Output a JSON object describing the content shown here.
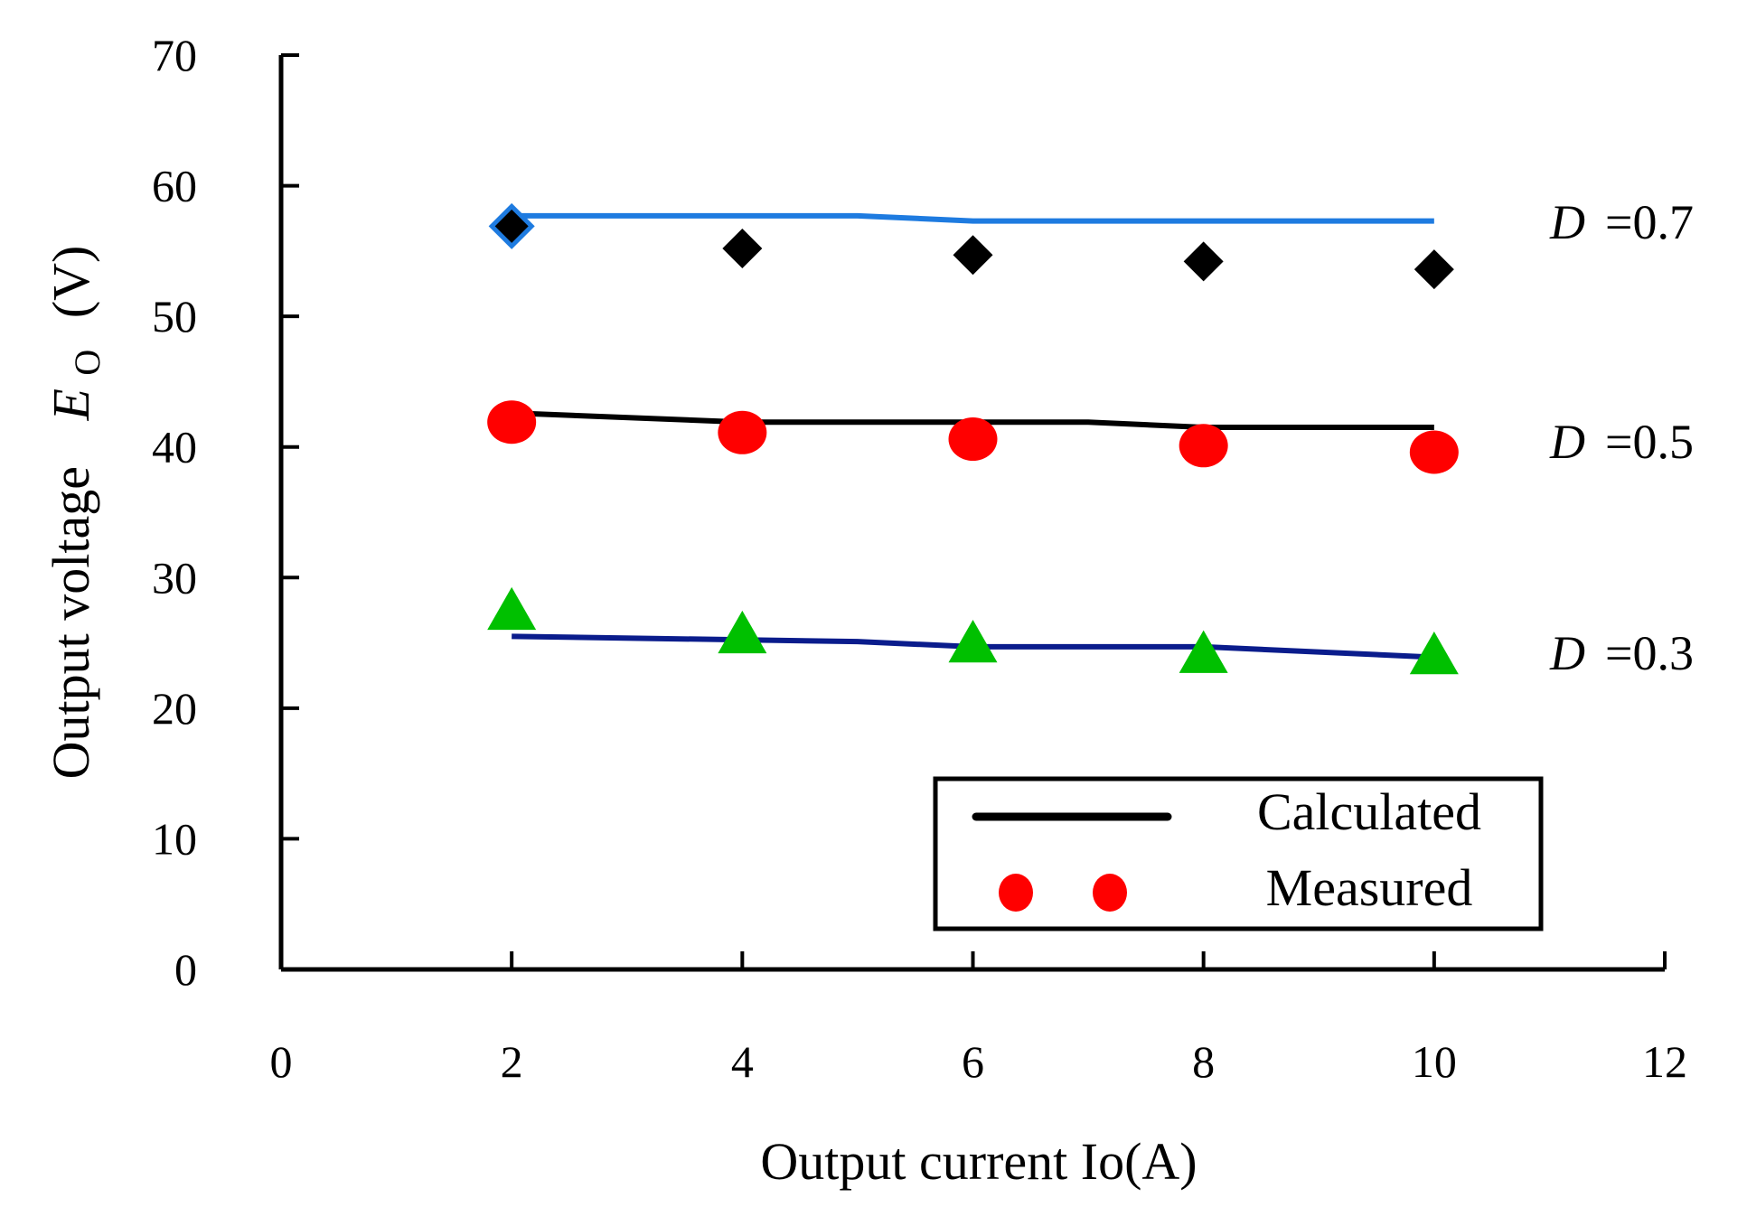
{
  "chart_data": {
    "type": "line",
    "xlabel": "Output current  Io(A)",
    "ylabel_prefix": "Output voltage",
    "ylabel_symbol": "E",
    "ylabel_subscript": "O",
    "ylabel_unit": "(V)",
    "xlim": [
      0,
      12
    ],
    "ylim": [
      0,
      70
    ],
    "x_ticks": [
      "0",
      "2",
      "4",
      "6",
      "8",
      "10",
      "12"
    ],
    "y_ticks": [
      "0",
      "10",
      "20",
      "30",
      "40",
      "50",
      "60",
      "70"
    ],
    "x": [
      2,
      4,
      6,
      8,
      10
    ],
    "series": [
      {
        "name": "D =0.7",
        "label_symbol": "D",
        "label_value": "=0.7",
        "calculated_x": [
          2,
          5,
          6,
          10
        ],
        "calculated": [
          57.7,
          57.7,
          57.3,
          57.3
        ],
        "measured": [
          56.9,
          55.2,
          54.7,
          54.2,
          53.6
        ],
        "marker": "diamond",
        "line_color": "#1e7be0",
        "marker_color": "#000000"
      },
      {
        "name": "D =0.5",
        "label_symbol": "D",
        "label_value": "=0.5",
        "calculated_x": [
          2,
          4,
          7,
          8,
          10
        ],
        "calculated": [
          42.6,
          41.9,
          41.9,
          41.5,
          41.5
        ],
        "measured": [
          41.9,
          41.1,
          40.6,
          40.1,
          39.6
        ],
        "marker": "circle",
        "line_color": "#000000",
        "marker_color": "#ff0000"
      },
      {
        "name": "D =0.3",
        "label_symbol": "D",
        "label_value": "=0.3",
        "calculated_x": [
          2,
          5,
          6,
          8,
          10
        ],
        "calculated": [
          25.5,
          25.1,
          24.7,
          24.7,
          23.9
        ],
        "measured": [
          27.4,
          25.6,
          24.9,
          24.1,
          24.0
        ],
        "marker": "triangle",
        "line_color": "#0a1c8c",
        "marker_color": "#00c000"
      }
    ],
    "legend": {
      "position": "bottom-right",
      "entries": [
        {
          "label": "Calculated",
          "kind": "line",
          "color": "#000000"
        },
        {
          "label": "Measured",
          "kind": "circle",
          "color": "#ff0000"
        }
      ]
    }
  }
}
